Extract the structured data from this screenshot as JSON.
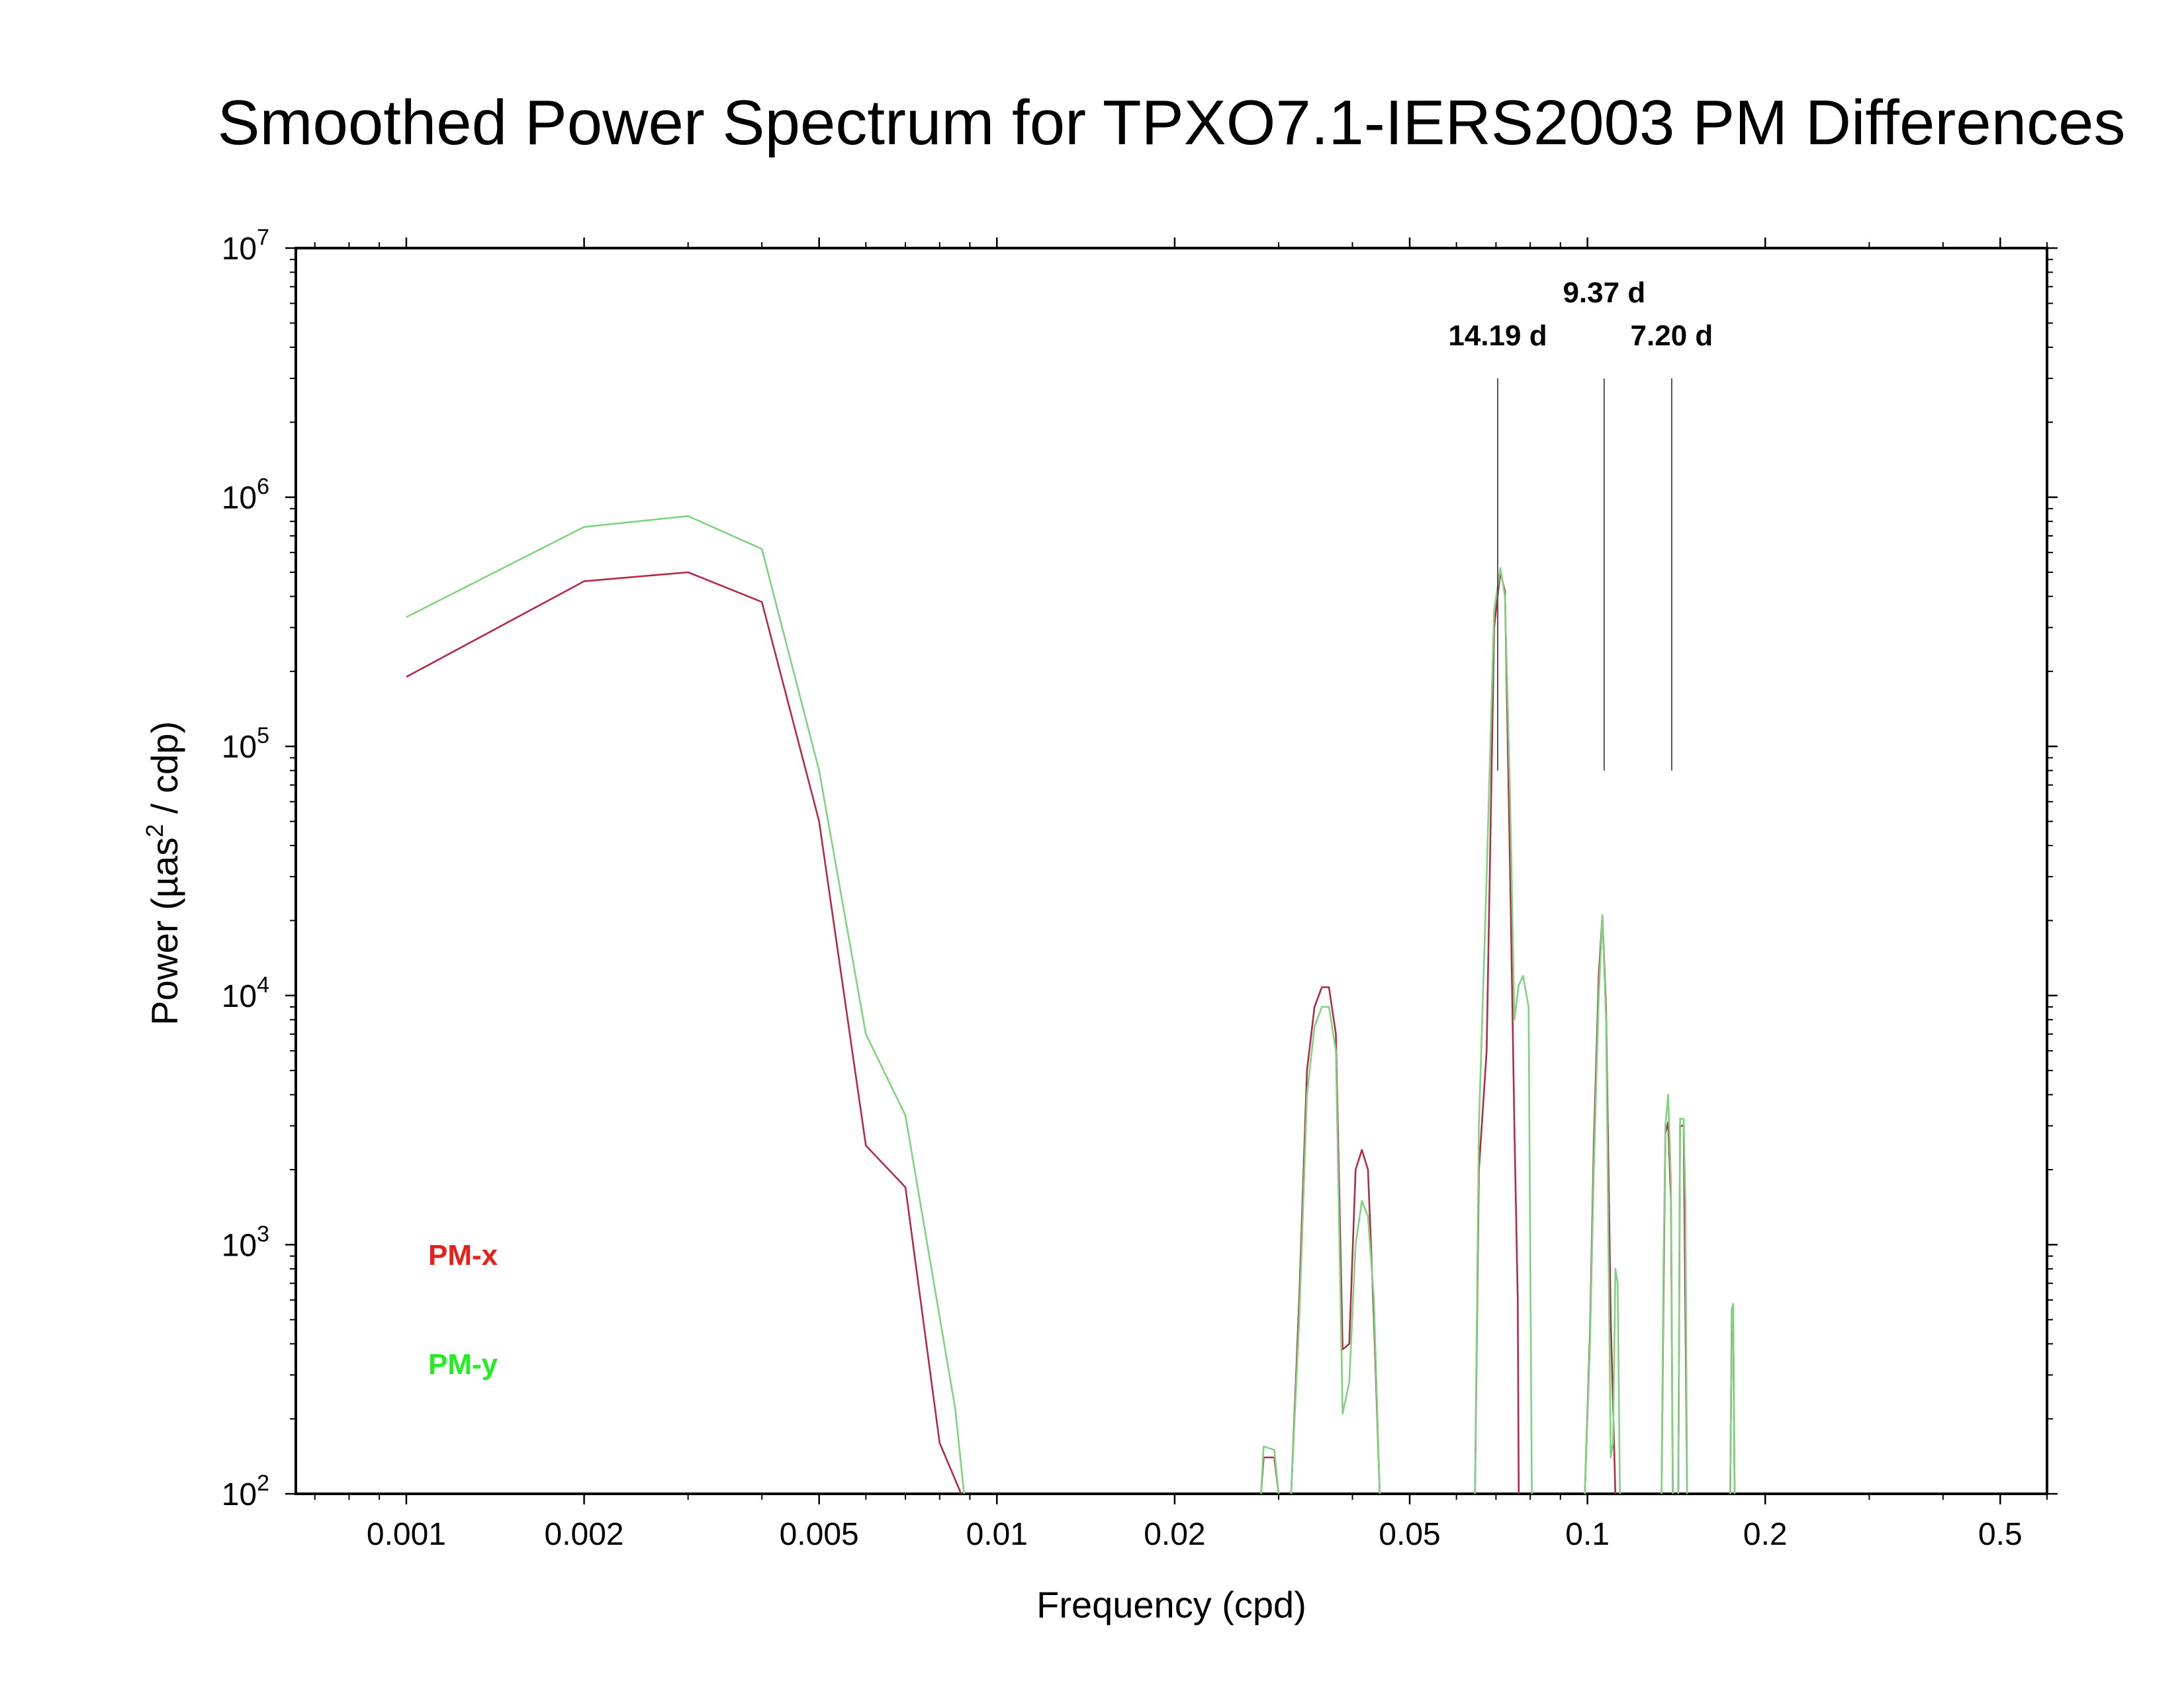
{
  "chart_data": {
    "type": "line",
    "title": "Smoothed Power Spectrum for TPXO7.1-IERS2003 PM Differences",
    "xlabel": "Frequency (cpd)",
    "ylabel": {
      "main": "Power (µas",
      "sup": "2",
      "tail": " / cdp)"
    },
    "xscale": "log",
    "yscale": "log",
    "xlim": [
      0.00065,
      0.6
    ],
    "ylim": [
      100,
      10000000
    ],
    "grid": false,
    "x_ticks": [
      {
        "value": 0.001,
        "label": "0.001"
      },
      {
        "value": 0.002,
        "label": "0.002"
      },
      {
        "value": 0.005,
        "label": "0.005"
      },
      {
        "value": 0.01,
        "label": "0.01"
      },
      {
        "value": 0.02,
        "label": "0.02"
      },
      {
        "value": 0.05,
        "label": "0.05"
      },
      {
        "value": 0.1,
        "label": "0.1"
      },
      {
        "value": 0.2,
        "label": "0.2"
      },
      {
        "value": 0.5,
        "label": "0.5"
      }
    ],
    "y_ticks": [
      {
        "value": 100,
        "base": "10",
        "exp": "2"
      },
      {
        "value": 1000,
        "base": "10",
        "exp": "3"
      },
      {
        "value": 10000,
        "base": "10",
        "exp": "4"
      },
      {
        "value": 100000,
        "base": "10",
        "exp": "5"
      },
      {
        "value": 1000000,
        "base": "10",
        "exp": "6"
      },
      {
        "value": 10000000,
        "base": "10",
        "exp": "7"
      }
    ],
    "legend": {
      "placement": "bottom-left"
    },
    "annotations": [
      {
        "label": "14.19 d",
        "period_days": 14.19,
        "y_top": 3000000,
        "y_bottom": 80000,
        "label_row": 1
      },
      {
        "label": "9.37 d",
        "period_days": 9.37,
        "y_top": 3000000,
        "y_bottom": 80000,
        "label_row": 0
      },
      {
        "label": "7.20 d",
        "period_days": 7.2,
        "y_top": 3000000,
        "y_bottom": 80000,
        "label_row": 1
      }
    ],
    "series": [
      {
        "name": "PM-x",
        "color": "#b22a48",
        "legend_color": "#e8201c",
        "segments": [
          [
            [
              0.001,
              190000
            ],
            [
              0.002,
              460000
            ],
            [
              0.003,
              500000
            ],
            [
              0.004,
              380000
            ],
            [
              0.005,
              50000
            ],
            [
              0.006,
              2500
            ],
            [
              0.007,
              1700
            ],
            [
              0.008,
              160
            ],
            [
              0.0087,
              100
            ]
          ],
          [
            [
              0.028,
              100
            ],
            [
              0.0283,
              140
            ],
            [
              0.0295,
              140
            ],
            [
              0.03,
              100
            ]
          ],
          [
            [
              0.0315,
              100
            ],
            [
              0.0325,
              600
            ],
            [
              0.0335,
              5000
            ],
            [
              0.0345,
              9000
            ],
            [
              0.0355,
              10800
            ],
            [
              0.0365,
              10800
            ],
            [
              0.0375,
              7000
            ],
            [
              0.0385,
              380
            ],
            [
              0.0395,
              400
            ],
            [
              0.0405,
              2000
            ],
            [
              0.0415,
              2400
            ],
            [
              0.0425,
              2000
            ],
            [
              0.0435,
              500
            ],
            [
              0.0445,
              100
            ]
          ],
          [
            [
              0.0645,
              100
            ],
            [
              0.0655,
              2000
            ],
            [
              0.0675,
              6000
            ],
            [
              0.0695,
              300000
            ],
            [
              0.0712,
              500000
            ],
            [
              0.0725,
              420000
            ],
            [
              0.074,
              30000
            ],
            [
              0.0752,
              3000
            ],
            [
              0.0762,
              600
            ],
            [
              0.0765,
              100
            ]
          ],
          [
            [
              0.099,
              100
            ],
            [
              0.101,
              450
            ],
            [
              0.1025,
              2500
            ],
            [
              0.1045,
              12000
            ],
            [
              0.106,
              21000
            ],
            [
              0.1075,
              9000
            ],
            [
              0.1095,
              500
            ],
            [
              0.1115,
              100
            ]
          ],
          [
            [
              0.1335,
              100
            ],
            [
              0.1345,
              600
            ],
            [
              0.1355,
              2800
            ],
            [
              0.137,
              3100
            ],
            [
              0.1385,
              1500
            ],
            [
              0.1395,
              100
            ]
          ],
          [
            [
              0.1425,
              100
            ],
            [
              0.1435,
              3000
            ],
            [
              0.1455,
              3000
            ],
            [
              0.1475,
              100
            ]
          ],
          [
            [
              0.1745,
              100
            ],
            [
              0.1755,
              500
            ],
            [
              0.1765,
              500
            ],
            [
              0.1775,
              100
            ]
          ]
        ]
      },
      {
        "name": "PM-y",
        "color": "#7ed47e",
        "legend_color": "#22ee22",
        "segments": [
          [
            [
              0.001,
              330000
            ],
            [
              0.002,
              760000
            ],
            [
              0.003,
              840000
            ],
            [
              0.004,
              620000
            ],
            [
              0.005,
              80000
            ],
            [
              0.006,
              7000
            ],
            [
              0.007,
              3300
            ],
            [
              0.0085,
              220
            ],
            [
              0.0088,
              100
            ]
          ],
          [
            [
              0.028,
              100
            ],
            [
              0.0283,
              155
            ],
            [
              0.0295,
              150
            ],
            [
              0.03,
              100
            ]
          ],
          [
            [
              0.0315,
              100
            ],
            [
              0.0325,
              500
            ],
            [
              0.0335,
              4000
            ],
            [
              0.0345,
              7500
            ],
            [
              0.0355,
              9000
            ],
            [
              0.0365,
              9000
            ],
            [
              0.0375,
              6000
            ],
            [
              0.0385,
              210
            ],
            [
              0.0395,
              280
            ],
            [
              0.0405,
              1000
            ],
            [
              0.0415,
              1500
            ],
            [
              0.0425,
              1300
            ],
            [
              0.0435,
              600
            ],
            [
              0.0445,
              100
            ]
          ],
          [
            [
              0.0645,
              100
            ],
            [
              0.0655,
              3000
            ],
            [
              0.0675,
              30000
            ],
            [
              0.0695,
              350000
            ],
            [
              0.0712,
              520000
            ],
            [
              0.0725,
              400000
            ],
            [
              0.074,
              60000
            ],
            [
              0.0752,
              8000
            ],
            [
              0.0765,
              11000
            ],
            [
              0.0778,
              12000
            ],
            [
              0.0795,
              9000
            ],
            [
              0.0805,
              100
            ]
          ],
          [
            [
              0.099,
              100
            ],
            [
              0.101,
              400
            ],
            [
              0.1025,
              2000
            ],
            [
              0.1045,
              10000
            ],
            [
              0.106,
              21000
            ],
            [
              0.1075,
              8000
            ],
            [
              0.1095,
              140
            ],
            [
              0.1105,
              160
            ],
            [
              0.1115,
              800
            ],
            [
              0.1125,
              700
            ],
            [
              0.1135,
              100
            ]
          ],
          [
            [
              0.1335,
              100
            ],
            [
              0.1345,
              800
            ],
            [
              0.1355,
              3000
            ],
            [
              0.137,
              4000
            ],
            [
              0.1385,
              1800
            ],
            [
              0.1395,
              100
            ]
          ],
          [
            [
              0.1425,
              100
            ],
            [
              0.1435,
              3200
            ],
            [
              0.1455,
              3200
            ],
            [
              0.1465,
              1500
            ],
            [
              0.1475,
              100
            ]
          ],
          [
            [
              0.1745,
              100
            ],
            [
              0.1755,
              550
            ],
            [
              0.1765,
              580
            ],
            [
              0.1775,
              100
            ]
          ]
        ]
      }
    ]
  }
}
